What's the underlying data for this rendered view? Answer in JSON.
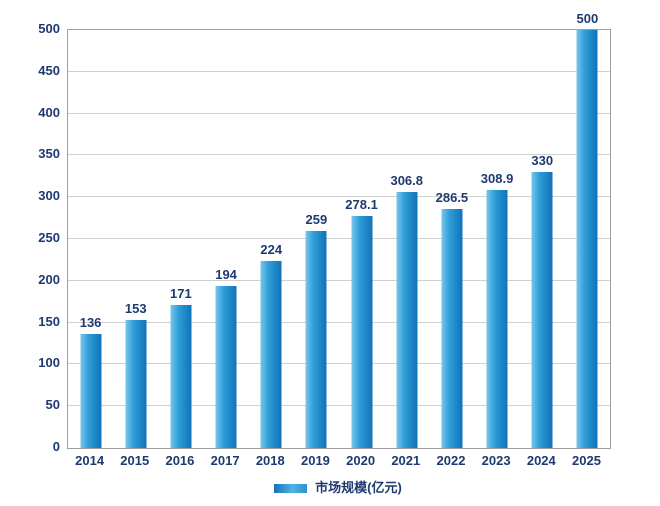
{
  "chart_data": {
    "type": "bar",
    "categories": [
      "2014",
      "2015",
      "2016",
      "2017",
      "2018",
      "2019",
      "2020",
      "2021",
      "2022",
      "2023",
      "2024",
      "2025"
    ],
    "values": [
      136,
      153,
      171,
      194,
      224,
      259,
      278.1,
      306.8,
      286.5,
      308.9,
      330,
      500
    ],
    "value_labels": [
      "136",
      "153",
      "171",
      "194",
      "224",
      "259",
      "278.1",
      "306.8",
      "286.5",
      "308.9",
      "330",
      "500"
    ],
    "title": "",
    "xlabel": "",
    "ylabel": "",
    "ylim": [
      0,
      500
    ],
    "yticks": [
      0,
      50,
      100,
      150,
      200,
      250,
      300,
      350,
      400,
      450,
      500
    ],
    "grid": true,
    "legend": [
      "市场规模(亿元)"
    ],
    "legend_position": "bottom"
  },
  "colors": {
    "text": "#1e3a70",
    "gridline": "#d0d0d0",
    "frame": "#9e9e9e",
    "bar_gradient_start": "#7ac6ec",
    "bar_gradient_mid": "#2e9ed8",
    "bar_gradient_end": "#1172b8",
    "background": "#ffffff"
  }
}
